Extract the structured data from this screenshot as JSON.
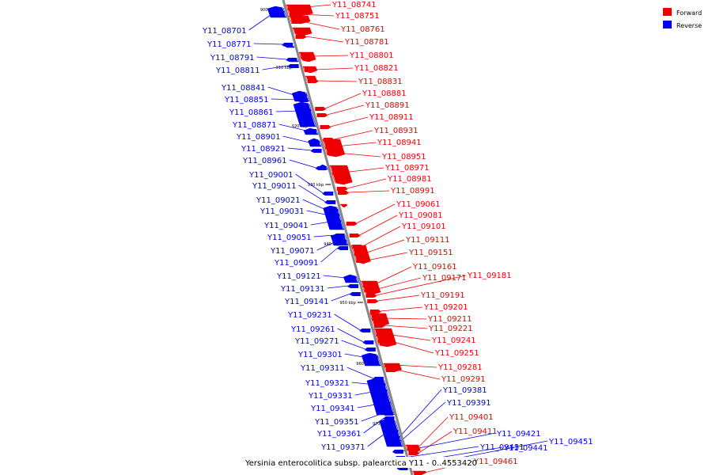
{
  "colors": {
    "forward": "#ee0000",
    "reverse": "#0000ee",
    "backbone": "#888888"
  },
  "legend": {
    "forward_label": "Forward",
    "reverse_label": "Reverse"
  },
  "caption": "Yersinia enterocolitica subsp. palearctica Y11 - 0..4553420",
  "ticks": [
    "900 kbp",
    "910 kbp",
    "920 kbp",
    "930 kbp",
    "940 kbp",
    "950 kbp",
    "960 kbp",
    "970 kbp"
  ],
  "forward_genes": [
    "Y11_08741",
    "Y11_08751",
    "Y11_08761",
    "Y11_08781",
    "Y11_08801",
    "Y11_08821",
    "Y11_08831",
    "Y11_08881",
    "Y11_08891",
    "Y11_08911",
    "Y11_08931",
    "Y11_08941",
    "Y11_08951",
    "Y11_08971",
    "Y11_08981",
    "Y11_08991",
    "Y11_09061",
    "Y11_09081",
    "Y11_09101",
    "Y11_09111",
    "Y11_09151",
    "Y11_09161",
    "Y11_09171",
    "Y11_09181",
    "Y11_09191",
    "Y11_09201",
    "Y11_09211",
    "Y11_09221",
    "Y11_09241",
    "Y11_09251",
    "Y11_09281",
    "Y11_09291",
    "Y11_09401",
    "Y11_09411",
    "Y11_09461"
  ],
  "reverse_genes": [
    "Y11_08701",
    "Y11_08771",
    "Y11_08791",
    "Y11_08811",
    "Y11_08841",
    "Y11_08851",
    "Y11_08861",
    "Y11_08871",
    "Y11_08901",
    "Y11_08921",
    "Y11_08961",
    "Y11_09001",
    "Y11_09011",
    "Y11_09021",
    "Y11_09031",
    "Y11_09041",
    "Y11_09051",
    "Y11_09071",
    "Y11_09091",
    "Y11_09121",
    "Y11_09131",
    "Y11_09141",
    "Y11_09231",
    "Y11_09261",
    "Y11_09271",
    "Y11_09301",
    "Y11_09311",
    "Y11_09321",
    "Y11_09331",
    "Y11_09341",
    "Y11_09351",
    "Y11_09361",
    "Y11_09371",
    "Y11_09381",
    "Y11_09391",
    "Y11_09421",
    "Y11_09431",
    "Y11_09441",
    "Y11_09451"
  ]
}
